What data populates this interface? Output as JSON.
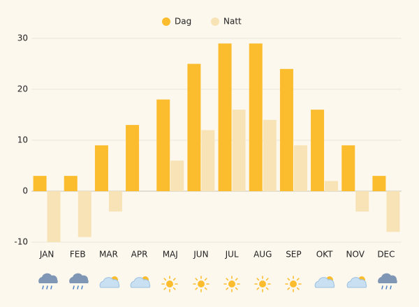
{
  "chart_data": {
    "type": "bar",
    "categories": [
      "JAN",
      "FEB",
      "MAR",
      "APR",
      "MAJ",
      "JUN",
      "JUL",
      "AUG",
      "SEP",
      "OKT",
      "NOV",
      "DEC"
    ],
    "series": [
      {
        "name": "Dag",
        "color": "#fbbd2e",
        "values": [
          3,
          3,
          9,
          13,
          18,
          25,
          29,
          29,
          24,
          16,
          9,
          3
        ]
      },
      {
        "name": "Natt",
        "color": "#f8e3b6",
        "values": [
          -10,
          -9,
          -4,
          0,
          6,
          12,
          16,
          14,
          9,
          2,
          -4,
          -8
        ]
      }
    ],
    "ylim": [
      -10,
      30
    ],
    "yticks": [
      -10,
      0,
      10,
      20,
      30
    ],
    "grid": true,
    "legend": "top"
  }
}
